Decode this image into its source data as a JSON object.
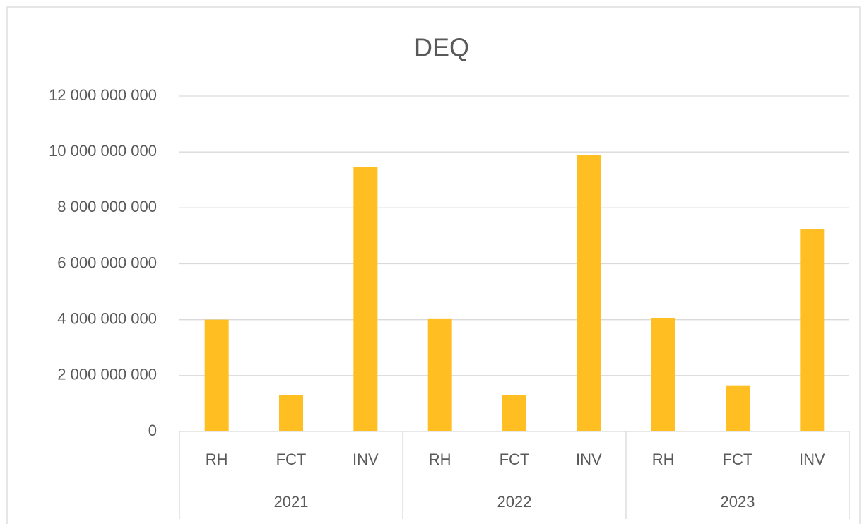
{
  "chart_data": {
    "type": "bar",
    "title": "DEQ",
    "categories": [
      "RH",
      "FCT",
      "INV",
      "RH",
      "FCT",
      "INV",
      "RH",
      "FCT",
      "INV"
    ],
    "groups": [
      "2021",
      "2022",
      "2023"
    ],
    "values": [
      4000000000,
      1300000000,
      9470000000,
      4020000000,
      1300000000,
      9900000000,
      4050000000,
      1650000000,
      7250000000
    ],
    "color": "#ffbf23",
    "ylim": [
      0,
      12000000000
    ],
    "yticks": [
      0,
      {
        "value": 2000000000,
        "label": "2 000 000 000"
      },
      {
        "value": 4000000000,
        "label": "4 000 000 000"
      },
      {
        "value": 6000000000,
        "label": "6 000 000 000"
      },
      {
        "value": 8000000000,
        "label": "8 000 000 000"
      },
      {
        "value": 10000000000,
        "label": "10 000 000 000"
      },
      {
        "value": 12000000000,
        "label": "12 000 000 000"
      }
    ],
    "grid": true
  }
}
